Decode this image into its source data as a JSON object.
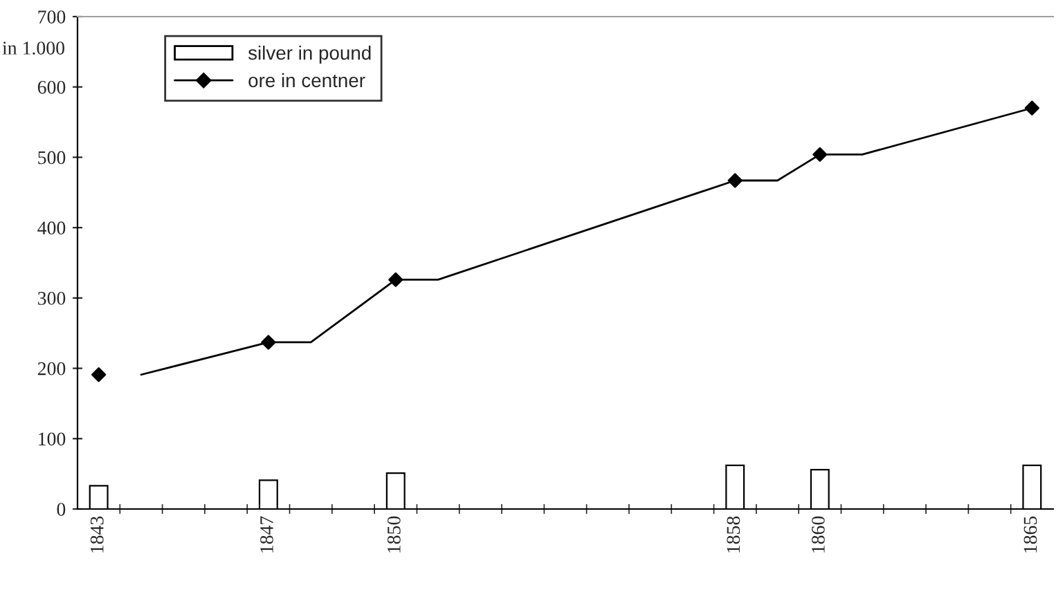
{
  "chart_data": {
    "type": "bar",
    "ylabel": "in 1.000",
    "categories": [
      "1843",
      null,
      null,
      null,
      "1847",
      null,
      null,
      "1850",
      null,
      null,
      null,
      null,
      null,
      null,
      null,
      "1858",
      null,
      "1860",
      null,
      null,
      null,
      null,
      "1865"
    ],
    "series": [
      {
        "name": "silver in pound",
        "color": "#ffffff",
        "values": [
          33,
          null,
          null,
          null,
          41,
          null,
          null,
          51,
          null,
          null,
          null,
          null,
          null,
          null,
          null,
          62,
          null,
          56,
          null,
          null,
          null,
          null,
          62
        ]
      },
      {
        "name": "ore in centner",
        "type": "scatter",
        "color": "#000000",
        "marker": "diamond",
        "values": [
          191,
          null,
          null,
          null,
          237,
          null,
          null,
          326,
          null,
          null,
          null,
          null,
          null,
          null,
          null,
          467,
          null,
          504,
          null,
          null,
          null,
          null,
          570
        ]
      },
      {
        "type": "line",
        "color": "#000000",
        "values": [
          null,
          191,
          null,
          null,
          237,
          237,
          null,
          326,
          326,
          null,
          null,
          null,
          null,
          null,
          null,
          467,
          467,
          504,
          504,
          null,
          null,
          null,
          570
        ]
      }
    ],
    "ylim": [
      0,
      700
    ],
    "yticks": [
      0,
      100,
      200,
      300,
      400,
      500,
      600,
      700
    ],
    "legend": "top left",
    "grid": false
  }
}
